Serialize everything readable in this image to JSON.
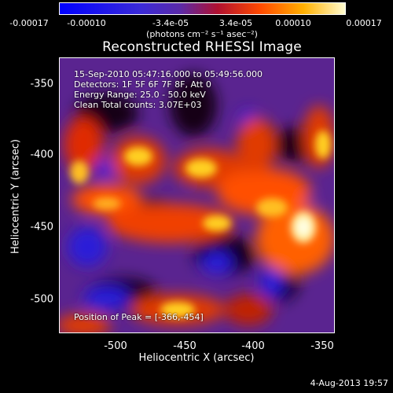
{
  "colorbar": {
    "tick_labels": [
      "-0.00017",
      "-0.00010",
      "-3.4e-05",
      "3.4e-05",
      "0.00010",
      "0.00017"
    ],
    "units": "(photons cm⁻² s⁻¹ asec⁻²)"
  },
  "title": "Reconstructed RHESSI Image",
  "annotations": {
    "time": "15-Sep-2010 05:47:16.000 to 05:49:56.000",
    "detectors": "Detectors: 1F 5F 6F 7F 8F, Att 0",
    "energy": "Energy Range: 25.0 - 50.0 keV",
    "clean": "Clean    Total counts: 3.07E+03",
    "peak": "Position of Peak = [-366,-454]"
  },
  "axes": {
    "xlabel": "Heliocentric X (arcsec)",
    "ylabel": "Heliocentric Y (arcsec)",
    "xticks": [
      "-500",
      "-450",
      "-400",
      "-350"
    ],
    "yticks": [
      "-350",
      "-400",
      "-450",
      "-500"
    ]
  },
  "stamp": "4-Aug-2013 19:57"
}
